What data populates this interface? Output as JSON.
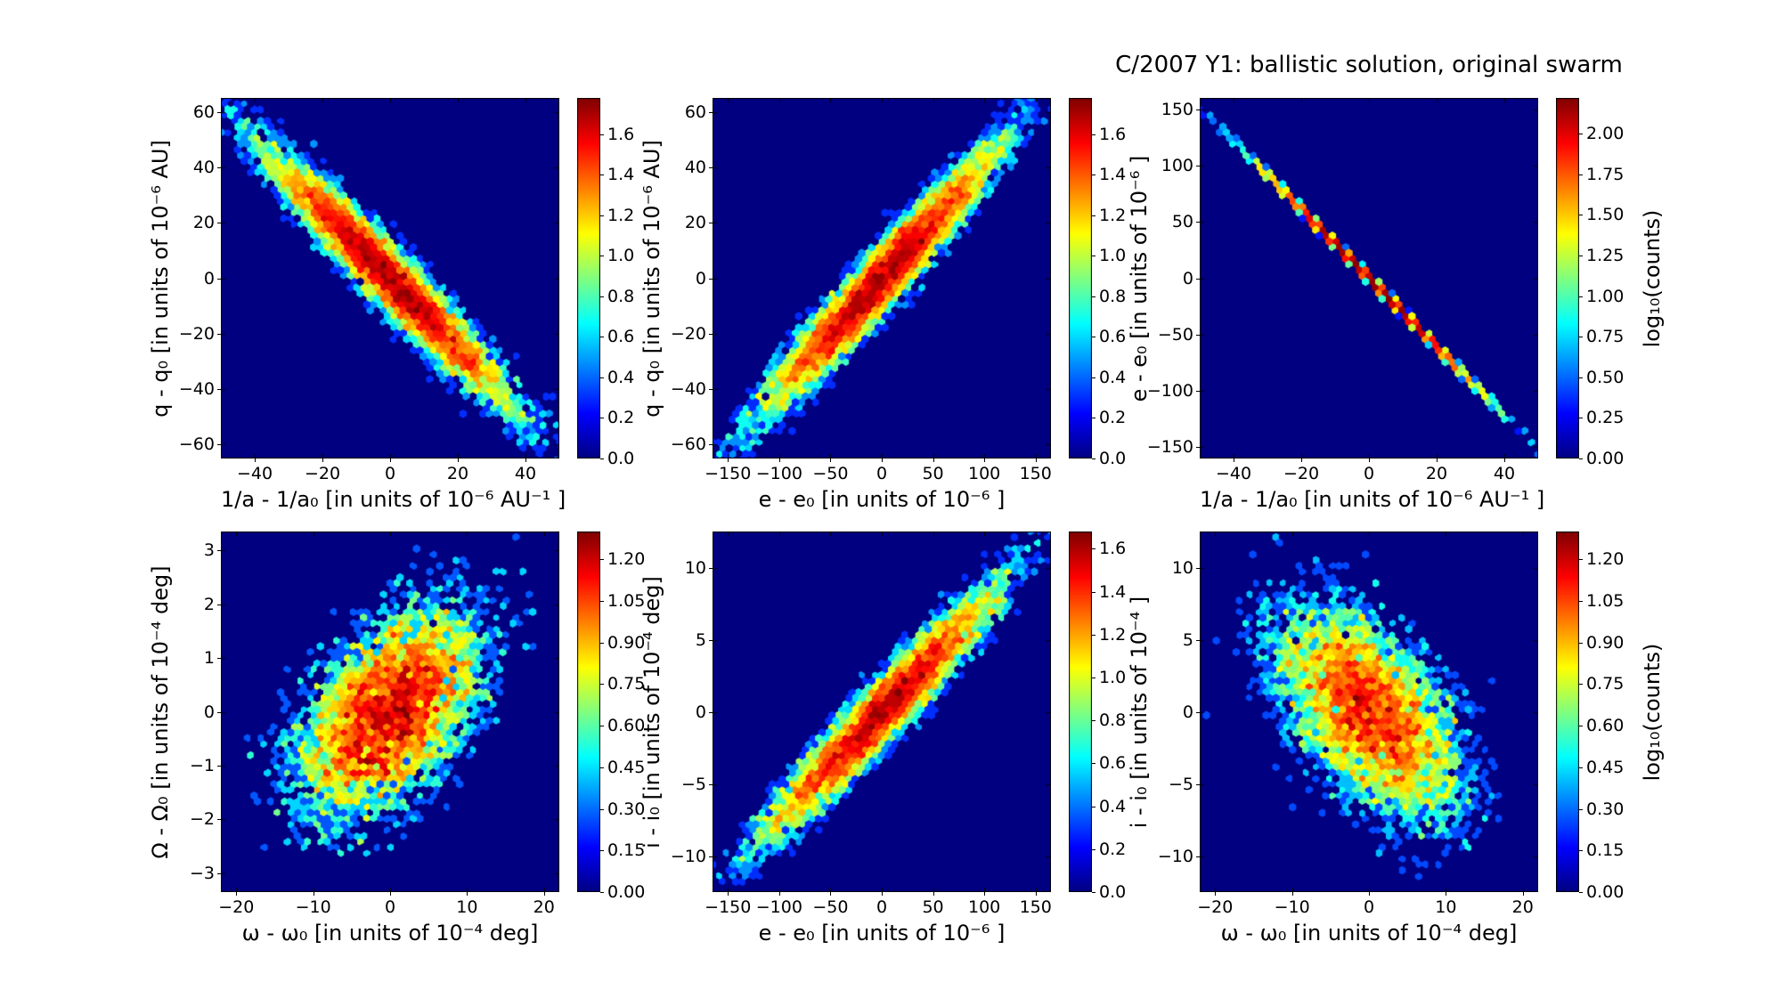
{
  "title": "C/2007 Y1: ballistic solution, original swarm",
  "style": {
    "colormap": "jet",
    "plot_background": "#000080",
    "page_background": "#ffffff",
    "text_color": "#000000"
  },
  "chart_data": [
    {
      "type": "hexbin",
      "name": "q-q0 vs 1/a-1/a0",
      "xlabel": "1/a - 1/a₀ [in units of 10⁻⁶ AU⁻¹ ]",
      "ylabel": "q - q₀ [in units of 10⁻⁶ AU]",
      "xlim": [
        -50,
        50
      ],
      "ylim": [
        -65,
        65
      ],
      "xticks": [
        -40,
        -20,
        0,
        20,
        40
      ],
      "yticks": [
        -60,
        -40,
        -20,
        0,
        20,
        40,
        60
      ],
      "colorbar": {
        "tick_values": [
          0.0,
          0.2,
          0.4,
          0.6,
          0.8,
          1.0,
          1.2,
          1.4,
          1.6
        ],
        "tick_labels": [
          "0.0",
          "0.2",
          "0.4",
          "0.6",
          "0.8",
          "1.0",
          "1.2",
          "1.4",
          "1.6"
        ],
        "max": 1.78,
        "label": ""
      },
      "distribution": {
        "kind": "gaussian",
        "slope": -1.22,
        "sigma_x": 19,
        "sigma_eps": 6.5,
        "n": 10000,
        "seed": 7
      }
    },
    {
      "type": "hexbin",
      "name": "q-q0 vs e-e0",
      "xlabel": "e - e₀ [in units of 10⁻⁶ ]",
      "ylabel": "q - q₀ [in units of 10⁻⁶ AU]",
      "xlim": [
        -165,
        165
      ],
      "ylim": [
        -65,
        65
      ],
      "xticks": [
        -150,
        -100,
        -50,
        0,
        50,
        100,
        150
      ],
      "yticks": [
        -60,
        -40,
        -20,
        0,
        20,
        40,
        60
      ],
      "colorbar": {
        "tick_values": [
          0.0,
          0.2,
          0.4,
          0.6,
          0.8,
          1.0,
          1.2,
          1.4,
          1.6
        ],
        "tick_labels": [
          "0.0",
          "0.2",
          "0.4",
          "0.6",
          "0.8",
          "1.0",
          "1.2",
          "1.4",
          "1.6"
        ],
        "max": 1.78,
        "label": ""
      },
      "distribution": {
        "kind": "gaussian",
        "slope": 0.4,
        "sigma_x": 60,
        "sigma_eps": 6.5,
        "n": 10000,
        "seed": 8
      }
    },
    {
      "type": "hexbin",
      "name": "e-e0 vs 1/a-1/a0",
      "xlabel": "1/a - 1/a₀ [in units of 10⁻⁶ AU⁻¹ ]",
      "ylabel": "e - e₀ [in units of 10⁻⁶ ]",
      "xlim": [
        -50,
        50
      ],
      "ylim": [
        -160,
        160
      ],
      "xticks": [
        -40,
        -20,
        0,
        20,
        40
      ],
      "yticks": [
        -150,
        -100,
        -50,
        0,
        50,
        100,
        150
      ],
      "colorbar": {
        "tick_values": [
          0.0,
          0.25,
          0.5,
          0.75,
          1.0,
          1.25,
          1.5,
          1.75,
          2.0
        ],
        "tick_labels": [
          "0.00",
          "0.25",
          "0.50",
          "0.75",
          "1.00",
          "1.25",
          "1.50",
          "1.75",
          "2.00"
        ],
        "max": 2.22,
        "label": "log₁₀(counts)"
      },
      "distribution": {
        "kind": "gaussian",
        "slope": -3.05,
        "sigma_x": 17,
        "sigma_eps": 1.2,
        "n": 4000,
        "seed": 9
      }
    },
    {
      "type": "hexbin",
      "name": "Omega-Omega0 vs omega-omega0",
      "xlabel": "ω - ω₀ [in units of 10⁻⁴ deg]",
      "ylabel": "Ω - Ω₀ [in units of 10⁻⁴ deg]",
      "xlim": [
        -22,
        22
      ],
      "ylim": [
        -3.35,
        3.35
      ],
      "xticks": [
        -20,
        -10,
        0,
        10,
        20
      ],
      "yticks": [
        -3,
        -2,
        -1,
        0,
        1,
        2,
        3
      ],
      "colorbar": {
        "tick_values": [
          0.0,
          0.15,
          0.3,
          0.45,
          0.6,
          0.75,
          0.9,
          1.05,
          1.2
        ],
        "tick_labels": [
          "0.00",
          "0.15",
          "0.30",
          "0.45",
          "0.60",
          "0.75",
          "0.90",
          "1.05",
          "1.20"
        ],
        "max": 1.3,
        "label": ""
      },
      "distribution": {
        "kind": "gaussian",
        "slope": 0.081,
        "sigma_x": 6.5,
        "sigma_eps": 0.91,
        "n": 8000,
        "seed": 10
      }
    },
    {
      "type": "hexbin",
      "name": "i-i0 vs e-e0",
      "xlabel": "e - e₀ [in units of 10⁻⁶ ]",
      "ylabel": "i - i₀ [in units of 10⁻⁴ deg]",
      "xlim": [
        -165,
        165
      ],
      "ylim": [
        -12.5,
        12.5
      ],
      "xticks": [
        -150,
        -100,
        -50,
        0,
        50,
        100,
        150
      ],
      "yticks": [
        -10,
        -5,
        0,
        5,
        10
      ],
      "colorbar": {
        "tick_values": [
          0.0,
          0.2,
          0.4,
          0.6,
          0.8,
          1.0,
          1.2,
          1.4,
          1.6
        ],
        "tick_labels": [
          "0.0",
          "0.2",
          "0.4",
          "0.6",
          "0.8",
          "1.0",
          "1.2",
          "1.4",
          "1.6"
        ],
        "max": 1.68,
        "label": ""
      },
      "distribution": {
        "kind": "gaussian",
        "slope": 0.073,
        "sigma_x": 60,
        "sigma_eps": 1.3,
        "n": 9000,
        "seed": 11
      }
    },
    {
      "type": "hexbin",
      "name": "i-i0 vs omega-omega0",
      "xlabel": "ω - ω₀ [in units of 10⁻⁴ deg]",
      "ylabel": "i - i₀ [in units of 10⁻⁴ ]",
      "xlim": [
        -22,
        22
      ],
      "ylim": [
        -12.5,
        12.5
      ],
      "xticks": [
        -20,
        -10,
        0,
        10,
        20
      ],
      "yticks": [
        -10,
        -5,
        0,
        5,
        10
      ],
      "colorbar": {
        "tick_values": [
          0.0,
          0.15,
          0.3,
          0.45,
          0.6,
          0.75,
          0.9,
          1.05,
          1.2
        ],
        "tick_labels": [
          "0.00",
          "0.15",
          "0.30",
          "0.45",
          "0.60",
          "0.75",
          "0.90",
          "1.05",
          "1.20"
        ],
        "max": 1.3,
        "label": "log₁₀(counts)"
      },
      "distribution": {
        "kind": "gaussian",
        "slope": -0.338,
        "sigma_x": 6.5,
        "sigma_eps": 3.34,
        "n": 8000,
        "seed": 12
      }
    }
  ]
}
